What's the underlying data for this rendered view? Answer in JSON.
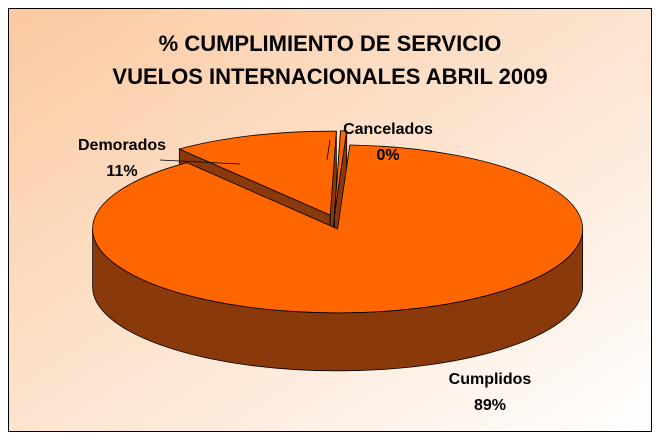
{
  "chart_data": {
    "type": "pie",
    "title": "% CUMPLIMIENTO DE SERVICIO",
    "subtitle": "VUELOS INTERNACIONALES ABRIL 2009",
    "categories": [
      "Cumplidos",
      "Demorados",
      "Cancelados"
    ],
    "values": [
      89,
      11,
      0.4
    ],
    "value_labels": [
      "89%",
      "11%",
      "0%"
    ],
    "colors": [
      "#ff6600",
      "#ff6600",
      "#ff6600"
    ],
    "side_color": "#8a3a0a"
  }
}
